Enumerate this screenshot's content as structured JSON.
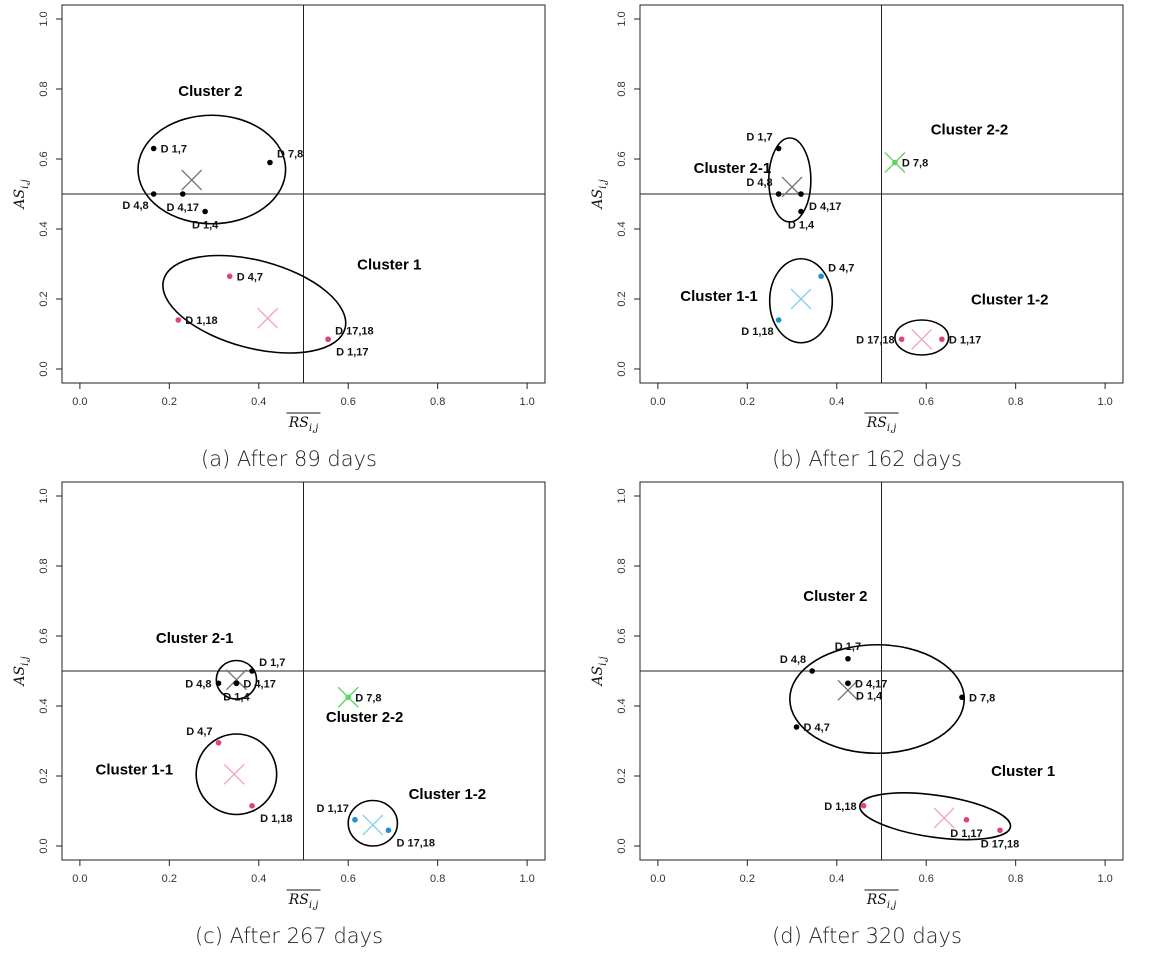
{
  "chart_data": [
    {
      "type": "scatter",
      "caption": "(a) After 89 days",
      "xlabel": "RS",
      "xlabel_sub": "i,j",
      "ylabel": "AS",
      "ylabel_sub": "i,j",
      "xlim": [
        0,
        1
      ],
      "ylim": [
        0,
        1
      ],
      "x_ticks": [
        "0.0",
        "0.2",
        "0.4",
        "0.6",
        "0.8",
        "1.0"
      ],
      "y_ticks": [
        "0.0",
        "0.2",
        "0.4",
        "0.6",
        "0.8",
        "1.0"
      ],
      "reference_lines": {
        "x": 0.5,
        "y": 0.5
      },
      "points": [
        {
          "label": "D 1,7",
          "x": 0.165,
          "y": 0.63,
          "color": "#000000",
          "label_pos": "right"
        },
        {
          "label": "D 7,8",
          "x": 0.425,
          "y": 0.59,
          "color": "#000000",
          "label_pos": "upright"
        },
        {
          "label": "D 4,8",
          "x": 0.165,
          "y": 0.5,
          "color": "#000000",
          "label_pos": "below-left"
        },
        {
          "label": "D 4,17",
          "x": 0.23,
          "y": 0.5,
          "color": "#000000",
          "label_pos": "below"
        },
        {
          "label": "D 1,4",
          "x": 0.28,
          "y": 0.45,
          "color": "#000000",
          "label_pos": "below"
        },
        {
          "label": "D 4,7",
          "x": 0.335,
          "y": 0.265,
          "color": "#e0446a",
          "label_pos": "right"
        },
        {
          "label": "D 1,18",
          "x": 0.22,
          "y": 0.14,
          "color": "#e0446a",
          "label_pos": "right"
        },
        {
          "label": "D 17,18",
          "x": 0.555,
          "y": 0.085,
          "color": "#e0446a",
          "label_pos": "upright"
        },
        {
          "label": "D 1,17",
          "x": 0.555,
          "y": 0.085,
          "color": "#e0446a",
          "label_pos": "belowright"
        }
      ],
      "centroids": [
        {
          "x": 0.25,
          "y": 0.54,
          "color": "#777777"
        },
        {
          "x": 0.42,
          "y": 0.145,
          "color": "#f3a6b8"
        }
      ],
      "clusters": [
        {
          "label": "Cluster 2",
          "cx": 0.295,
          "cy": 0.57,
          "rx": 0.165,
          "ry": 0.155,
          "rot": 0,
          "lx": 0.22,
          "ly": 0.78
        },
        {
          "label": "Cluster 1",
          "cx": 0.39,
          "cy": 0.185,
          "rx": 0.21,
          "ry": 0.125,
          "rot": 15,
          "lx": 0.62,
          "ly": 0.285
        }
      ]
    },
    {
      "type": "scatter",
      "caption": "(b) After 162 days",
      "xlabel": "RS",
      "xlabel_sub": "i,j",
      "ylabel": "AS",
      "ylabel_sub": "i,j",
      "xlim": [
        0,
        1
      ],
      "ylim": [
        0,
        1
      ],
      "x_ticks": [
        "0.0",
        "0.2",
        "0.4",
        "0.6",
        "0.8",
        "1.0"
      ],
      "y_ticks": [
        "0.0",
        "0.2",
        "0.4",
        "0.6",
        "0.8",
        "1.0"
      ],
      "reference_lines": {
        "x": 0.5,
        "y": 0.5
      },
      "points": [
        {
          "label": "D 1,7",
          "x": 0.27,
          "y": 0.63,
          "color": "#000000",
          "label_pos": "upleft"
        },
        {
          "label": "D 4,8",
          "x": 0.27,
          "y": 0.5,
          "color": "#000000",
          "label_pos": "upleft"
        },
        {
          "label": "D 4,17",
          "x": 0.32,
          "y": 0.5,
          "color": "#000000",
          "label_pos": "belowright"
        },
        {
          "label": "D 1,4",
          "x": 0.32,
          "y": 0.45,
          "color": "#000000",
          "label_pos": "below"
        },
        {
          "label": "D 7,8",
          "x": 0.53,
          "y": 0.59,
          "color": "#5fd35f",
          "label_pos": "right"
        },
        {
          "label": "D 4,7",
          "x": 0.365,
          "y": 0.265,
          "color": "#1e90d6",
          "label_pos": "upright"
        },
        {
          "label": "D 1,18",
          "x": 0.27,
          "y": 0.14,
          "color": "#1e90d6",
          "label_pos": "below-left"
        },
        {
          "label": "D 17,18",
          "x": 0.545,
          "y": 0.085,
          "color": "#e0446a",
          "label_pos": "left"
        },
        {
          "label": "D 1,17",
          "x": 0.635,
          "y": 0.085,
          "color": "#e0446a",
          "label_pos": "right"
        }
      ],
      "centroids": [
        {
          "x": 0.3,
          "y": 0.52,
          "color": "#777777"
        },
        {
          "x": 0.53,
          "y": 0.59,
          "color": "#5fd35f"
        },
        {
          "x": 0.32,
          "y": 0.2,
          "color": "#87cef0"
        },
        {
          "x": 0.59,
          "y": 0.085,
          "color": "#f3a6b8"
        }
      ],
      "clusters": [
        {
          "label": "Cluster 2-1",
          "cx": 0.295,
          "cy": 0.54,
          "rx": 0.047,
          "ry": 0.12,
          "rot": 0,
          "lx": 0.08,
          "ly": 0.56
        },
        {
          "label": "Cluster 2-2",
          "cx": 0,
          "cy": 0,
          "rx": 0,
          "ry": 0,
          "rot": 0,
          "lx": 0.61,
          "ly": 0.67
        },
        {
          "label": "Cluster 1-1",
          "cx": 0.32,
          "cy": 0.195,
          "rx": 0.07,
          "ry": 0.12,
          "rot": 0,
          "lx": 0.05,
          "ly": 0.195
        },
        {
          "label": "Cluster 1-2",
          "cx": 0.59,
          "cy": 0.09,
          "rx": 0.06,
          "ry": 0.05,
          "rot": 0,
          "lx": 0.7,
          "ly": 0.185
        }
      ]
    },
    {
      "type": "scatter",
      "caption": "(c) After 267 days",
      "xlabel": "RS",
      "xlabel_sub": "i,j",
      "ylabel": "AS",
      "ylabel_sub": "i,j",
      "xlim": [
        0,
        1
      ],
      "ylim": [
        0,
        1
      ],
      "x_ticks": [
        "0.0",
        "0.2",
        "0.4",
        "0.6",
        "0.8",
        "1.0"
      ],
      "y_ticks": [
        "0.0",
        "0.2",
        "0.4",
        "0.6",
        "0.8",
        "1.0"
      ],
      "reference_lines": {
        "x": 0.5,
        "y": 0.5
      },
      "points": [
        {
          "label": "D 1,7",
          "x": 0.385,
          "y": 0.5,
          "color": "#000000",
          "label_pos": "upright"
        },
        {
          "label": "D 4,8",
          "x": 0.31,
          "y": 0.465,
          "color": "#000000",
          "label_pos": "left"
        },
        {
          "label": "D 4,17",
          "x": 0.35,
          "y": 0.465,
          "color": "#000000",
          "label_pos": "right"
        },
        {
          "label": "D 1,4",
          "x": 0.35,
          "y": 0.465,
          "color": "#000000",
          "label_pos": "below"
        },
        {
          "label": "D 7,8",
          "x": 0.6,
          "y": 0.425,
          "color": "#5fd35f",
          "label_pos": "right"
        },
        {
          "label": "D 4,7",
          "x": 0.31,
          "y": 0.295,
          "color": "#e0446a",
          "label_pos": "upleft"
        },
        {
          "label": "D 1,18",
          "x": 0.385,
          "y": 0.115,
          "color": "#e0446a",
          "label_pos": "belowright"
        },
        {
          "label": "D 1,17",
          "x": 0.615,
          "y": 0.075,
          "color": "#1e90d6",
          "label_pos": "upleft"
        },
        {
          "label": "D 17,18",
          "x": 0.69,
          "y": 0.045,
          "color": "#1e90d6",
          "label_pos": "belowright"
        }
      ],
      "centroids": [
        {
          "x": 0.35,
          "y": 0.475,
          "color": "#777777"
        },
        {
          "x": 0.6,
          "y": 0.425,
          "color": "#5fd35f"
        },
        {
          "x": 0.345,
          "y": 0.205,
          "color": "#f3a6b8"
        },
        {
          "x": 0.655,
          "y": 0.06,
          "color": "#87cef0"
        }
      ],
      "clusters": [
        {
          "label": "Cluster 2-1",
          "cx": 0.35,
          "cy": 0.475,
          "rx": 0.045,
          "ry": 0.055,
          "rot": 0,
          "lx": 0.17,
          "ly": 0.58
        },
        {
          "label": "Cluster 2-2",
          "cx": 0,
          "cy": 0,
          "rx": 0,
          "ry": 0,
          "rot": 0,
          "lx": 0.55,
          "ly": 0.355
        },
        {
          "label": "Cluster 1-1",
          "cx": 0.35,
          "cy": 0.205,
          "rx": 0.09,
          "ry": 0.115,
          "rot": 0,
          "lx": 0.035,
          "ly": 0.205
        },
        {
          "label": "Cluster 1-2",
          "cx": 0.655,
          "cy": 0.065,
          "rx": 0.055,
          "ry": 0.065,
          "rot": 0,
          "lx": 0.735,
          "ly": 0.135
        }
      ]
    },
    {
      "type": "scatter",
      "caption": "(d) After 320 days",
      "xlabel": "RS",
      "xlabel_sub": "i,j",
      "ylabel": "AS",
      "ylabel_sub": "i,j",
      "xlim": [
        0,
        1
      ],
      "ylim": [
        0,
        1
      ],
      "x_ticks": [
        "0.0",
        "0.2",
        "0.4",
        "0.6",
        "0.8",
        "1.0"
      ],
      "y_ticks": [
        "0.0",
        "0.2",
        "0.4",
        "0.6",
        "0.8",
        "1.0"
      ],
      "reference_lines": {
        "x": 0.5,
        "y": 0.5
      },
      "points": [
        {
          "label": "D 1,7",
          "x": 0.425,
          "y": 0.535,
          "color": "#000000",
          "label_pos": "up"
        },
        {
          "label": "D 4,8",
          "x": 0.345,
          "y": 0.5,
          "color": "#000000",
          "label_pos": "upleft"
        },
        {
          "label": "D 4,17",
          "x": 0.425,
          "y": 0.465,
          "color": "#000000",
          "label_pos": "right"
        },
        {
          "label": "D 1,4",
          "x": 0.425,
          "y": 0.465,
          "color": "#000000",
          "label_pos": "belowright"
        },
        {
          "label": "D 7,8",
          "x": 0.68,
          "y": 0.425,
          "color": "#000000",
          "label_pos": "right"
        },
        {
          "label": "D 4,7",
          "x": 0.31,
          "y": 0.34,
          "color": "#000000",
          "label_pos": "right"
        },
        {
          "label": "D 1,18",
          "x": 0.46,
          "y": 0.115,
          "color": "#e0446a",
          "label_pos": "left"
        },
        {
          "label": "D 1,17",
          "x": 0.69,
          "y": 0.075,
          "color": "#e0446a",
          "label_pos": "below"
        },
        {
          "label": "D 17,18",
          "x": 0.765,
          "y": 0.045,
          "color": "#e0446a",
          "label_pos": "below"
        }
      ],
      "centroids": [
        {
          "x": 0.425,
          "y": 0.445,
          "color": "#777777"
        },
        {
          "x": 0.64,
          "y": 0.08,
          "color": "#f3a6b8"
        }
      ],
      "clusters": [
        {
          "label": "Cluster 2",
          "cx": 0.49,
          "cy": 0.42,
          "rx": 0.195,
          "ry": 0.155,
          "rot": 0,
          "lx": 0.325,
          "ly": 0.7
        },
        {
          "label": "Cluster 1",
          "cx": 0.62,
          "cy": 0.085,
          "rx": 0.17,
          "ry": 0.06,
          "rot": 8,
          "lx": 0.745,
          "ly": 0.2
        }
      ]
    }
  ]
}
